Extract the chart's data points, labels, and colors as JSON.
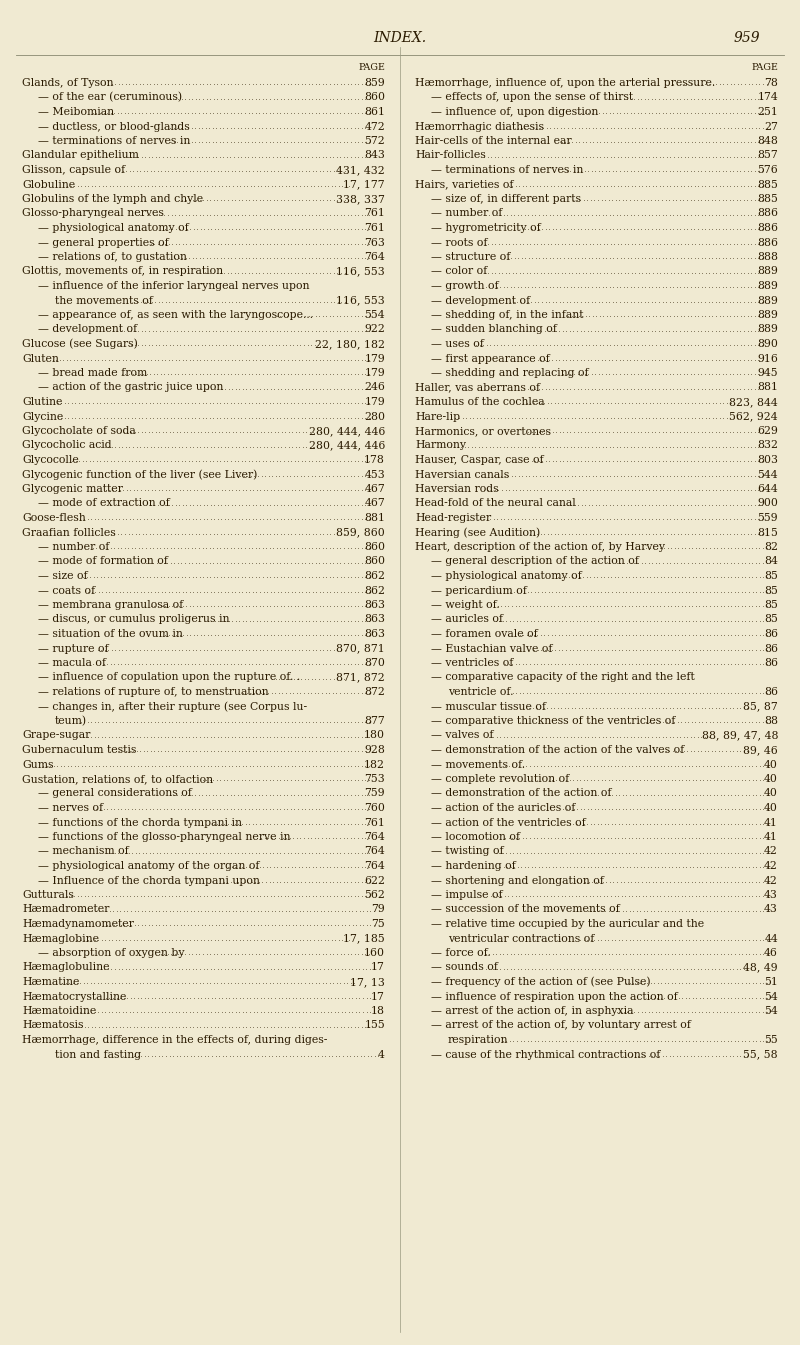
{
  "bg_color": "#f0ead2",
  "title": "INDEX.",
  "page_num": "959",
  "left_col": [
    {
      "text": "Glands, of Tyson",
      "indent": 0,
      "page": "859"
    },
    {
      "text": "— of the ear (ceruminous)",
      "indent": 1,
      "page": "860"
    },
    {
      "text": "— Meibomian",
      "indent": 1,
      "page": "861"
    },
    {
      "text": "— ductless, or blood-glands",
      "indent": 1,
      "page": "472"
    },
    {
      "text": "— terminations of nerves in",
      "indent": 1,
      "page": "572"
    },
    {
      "text": "Glandular epithelium",
      "indent": 0,
      "page": "843"
    },
    {
      "text": "Glisson, capsule of",
      "indent": 0,
      "page": "431, 432"
    },
    {
      "text": "Globuline",
      "indent": 0,
      "page": "17, 177"
    },
    {
      "text": "Globulins of the lymph and chyle",
      "indent": 0,
      "page": "338, 337"
    },
    {
      "text": "Glosso-pharyngeal nerves",
      "indent": 0,
      "page": "761"
    },
    {
      "text": "— physiological anatomy of",
      "indent": 1,
      "page": "761"
    },
    {
      "text": "— general properties of",
      "indent": 1,
      "page": "763"
    },
    {
      "text": "— relations of, to gustation",
      "indent": 1,
      "page": "764"
    },
    {
      "text": "Glottis, movements of, in respiration",
      "indent": 0,
      "page": "116, 553"
    },
    {
      "text": "— influence of the inferior laryngeal nerves upon",
      "indent": 1,
      "page": ""
    },
    {
      "text": "the movements of",
      "indent": 2,
      "page": "116, 553"
    },
    {
      "text": "— appearance of, as seen with the laryngoscope...",
      "indent": 1,
      "page": "554"
    },
    {
      "text": "— development of",
      "indent": 1,
      "page": "922"
    },
    {
      "text": "Glucose (see Sugars)",
      "indent": 0,
      "page": "22, 180, 182"
    },
    {
      "text": "Gluten",
      "indent": 0,
      "page": "179"
    },
    {
      "text": "— bread made from",
      "indent": 1,
      "page": "179"
    },
    {
      "text": "— action of the gastric juice upon",
      "indent": 1,
      "page": "246"
    },
    {
      "text": "Glutine",
      "indent": 0,
      "page": "179"
    },
    {
      "text": "Glycine",
      "indent": 0,
      "page": "280"
    },
    {
      "text": "Glycocholate of soda",
      "indent": 0,
      "page": "280, 444, 446"
    },
    {
      "text": "Glycocholic acid",
      "indent": 0,
      "page": "280, 444, 446"
    },
    {
      "text": "Glycocolle",
      "indent": 0,
      "page": "178"
    },
    {
      "text": "Glycogenic function of the liver (see Liver)",
      "indent": 0,
      "page": "453"
    },
    {
      "text": "Glycogenic matter",
      "indent": 0,
      "page": "467"
    },
    {
      "text": "— mode of extraction of",
      "indent": 1,
      "page": "467"
    },
    {
      "text": "Goose-flesh",
      "indent": 0,
      "page": "881"
    },
    {
      "text": "Graafian follicles",
      "indent": 0,
      "page": "859, 860"
    },
    {
      "text": "— number of",
      "indent": 1,
      "page": "860"
    },
    {
      "text": "— mode of formation of",
      "indent": 1,
      "page": "860"
    },
    {
      "text": "— size of",
      "indent": 1,
      "page": "862"
    },
    {
      "text": "— coats of",
      "indent": 1,
      "page": "862"
    },
    {
      "text": "— membrana granulosa of",
      "indent": 1,
      "page": "863"
    },
    {
      "text": "— discus, or cumulus proligerus in",
      "indent": 1,
      "page": "863"
    },
    {
      "text": "— situation of the ovum in",
      "indent": 1,
      "page": "863"
    },
    {
      "text": "— rupture of",
      "indent": 1,
      "page": "870, 871"
    },
    {
      "text": "— macula of",
      "indent": 1,
      "page": "870"
    },
    {
      "text": "— influence of copulation upon the rupture of. .",
      "indent": 1,
      "page": "871, 872"
    },
    {
      "text": "— relations of rupture of, to menstruation",
      "indent": 1,
      "page": "872"
    },
    {
      "text": "— changes in, after their rupture (see Corpus lu-",
      "indent": 1,
      "page": ""
    },
    {
      "text": "teum)",
      "indent": 2,
      "page": "877"
    },
    {
      "text": "Grape-sugar",
      "indent": 0,
      "page": "180"
    },
    {
      "text": "Gubernaculum testis",
      "indent": 0,
      "page": "928"
    },
    {
      "text": "Gums",
      "indent": 0,
      "page": "182"
    },
    {
      "text": "Gustation, relations of, to olfaction",
      "indent": 0,
      "page": "753"
    },
    {
      "text": "— general considerations of",
      "indent": 1,
      "page": "759"
    },
    {
      "text": "— nerves of",
      "indent": 1,
      "page": "760"
    },
    {
      "text": "— functions of the chorda tympani in",
      "indent": 1,
      "page": "761"
    },
    {
      "text": "— functions of the glosso-pharyngeal nerve in",
      "indent": 1,
      "page": "764"
    },
    {
      "text": "— mechanism of",
      "indent": 1,
      "page": "764"
    },
    {
      "text": "— physiological anatomy of the organ of",
      "indent": 1,
      "page": "764"
    },
    {
      "text": "— Influence of the chorda tympani upon",
      "indent": 1,
      "page": "622"
    },
    {
      "text": "Gutturals",
      "indent": 0,
      "page": "562"
    },
    {
      "text": "Hæmadrometer",
      "indent": 0,
      "page": "79"
    },
    {
      "text": "Hæmadynamometer",
      "indent": 0,
      "page": "75"
    },
    {
      "text": "Hæmaglobine",
      "indent": 0,
      "page": "17, 185"
    },
    {
      "text": "— absorption of oxygen by",
      "indent": 1,
      "page": "160"
    },
    {
      "text": "Hæmaglobuline",
      "indent": 0,
      "page": "17"
    },
    {
      "text": "Hæmatine",
      "indent": 0,
      "page": "17, 13"
    },
    {
      "text": "Hæmatocrystalline",
      "indent": 0,
      "page": "17"
    },
    {
      "text": "Hæmatoidine",
      "indent": 0,
      "page": "18"
    },
    {
      "text": "Hæmatosis",
      "indent": 0,
      "page": "155"
    },
    {
      "text": "Hæmorrhage, difference in the effects of, during diges-",
      "indent": 0,
      "page": ""
    },
    {
      "text": "tion and fasting",
      "indent": 2,
      "page": "4"
    }
  ],
  "right_col": [
    {
      "text": "Hæmorrhage, influence of, upon the arterial pressure.",
      "indent": 0,
      "page": "78"
    },
    {
      "text": "— effects of, upon the sense of thirst",
      "indent": 1,
      "page": "174"
    },
    {
      "text": "— influence of, upon digestion",
      "indent": 1,
      "page": "251"
    },
    {
      "text": "Hæmorrhagic diathesis",
      "indent": 0,
      "page": "27"
    },
    {
      "text": "Hair-cells of the internal ear",
      "indent": 0,
      "page": "848"
    },
    {
      "text": "Hair-follicles",
      "indent": 0,
      "page": "857"
    },
    {
      "text": "— terminations of nerves in",
      "indent": 1,
      "page": "576"
    },
    {
      "text": "Hairs, varieties of",
      "indent": 0,
      "page": "885"
    },
    {
      "text": "— size of, in different parts",
      "indent": 1,
      "page": "885"
    },
    {
      "text": "— number of",
      "indent": 1,
      "page": "886"
    },
    {
      "text": "— hygrometricity of",
      "indent": 1,
      "page": "886"
    },
    {
      "text": "— roots of",
      "indent": 1,
      "page": "886"
    },
    {
      "text": "— structure of",
      "indent": 1,
      "page": "888"
    },
    {
      "text": "— color of",
      "indent": 1,
      "page": "889"
    },
    {
      "text": "— growth of",
      "indent": 1,
      "page": "889"
    },
    {
      "text": "— development of",
      "indent": 1,
      "page": "889"
    },
    {
      "text": "— shedding of, in the infant",
      "indent": 1,
      "page": "889"
    },
    {
      "text": "— sudden blanching of",
      "indent": 1,
      "page": "889"
    },
    {
      "text": "— uses of",
      "indent": 1,
      "page": "890"
    },
    {
      "text": "— first appearance of",
      "indent": 1,
      "page": "916"
    },
    {
      "text": "— shedding and replacing of",
      "indent": 1,
      "page": "945"
    },
    {
      "text": "Haller, vas aberrans of",
      "indent": 0,
      "page": "881"
    },
    {
      "text": "Hamulus of the cochlea",
      "indent": 0,
      "page": "823, 844"
    },
    {
      "text": "Hare-lip",
      "indent": 0,
      "page": "562, 924"
    },
    {
      "text": "Harmonics, or overtones",
      "indent": 0,
      "page": "629"
    },
    {
      "text": "Harmony",
      "indent": 0,
      "page": "832"
    },
    {
      "text": "Hauser, Caspar, case of",
      "indent": 0,
      "page": "803"
    },
    {
      "text": "Haversian canals",
      "indent": 0,
      "page": "544"
    },
    {
      "text": "Haversian rods",
      "indent": 0,
      "page": "644"
    },
    {
      "text": "Head-fold of the neural canal",
      "indent": 0,
      "page": "900"
    },
    {
      "text": "Head-register",
      "indent": 0,
      "page": "559"
    },
    {
      "text": "Hearing (see Audition)",
      "indent": 0,
      "page": "815"
    },
    {
      "text": "Heart, description of the action of, by Harvey",
      "indent": 0,
      "page": "82"
    },
    {
      "text": "— general description of the action of",
      "indent": 1,
      "page": "84"
    },
    {
      "text": "— physiological anatomy of",
      "indent": 1,
      "page": "85"
    },
    {
      "text": "— pericardium of",
      "indent": 1,
      "page": "85"
    },
    {
      "text": "— weight of.",
      "indent": 1,
      "page": "85"
    },
    {
      "text": "— auricles of",
      "indent": 1,
      "page": "85"
    },
    {
      "text": "— foramen ovale of",
      "indent": 1,
      "page": "86"
    },
    {
      "text": "— Eustachian valve of",
      "indent": 1,
      "page": "86"
    },
    {
      "text": "— ventricles of",
      "indent": 1,
      "page": "86"
    },
    {
      "text": "— comparative capacity of the right and the left",
      "indent": 1,
      "page": ""
    },
    {
      "text": "ventricle of.",
      "indent": 2,
      "page": "86"
    },
    {
      "text": "— muscular tissue of",
      "indent": 1,
      "page": "85, 87"
    },
    {
      "text": "— comparative thickness of the ventricles of",
      "indent": 1,
      "page": "88"
    },
    {
      "text": "— valves of",
      "indent": 1,
      "page": "88, 89, 47, 48"
    },
    {
      "text": "— demonstration of the action of the valves of",
      "indent": 1,
      "page": "89, 46"
    },
    {
      "text": "— movements of.",
      "indent": 1,
      "page": "40"
    },
    {
      "text": "— complete revolution of",
      "indent": 1,
      "page": "40"
    },
    {
      "text": "— demonstration of the action of",
      "indent": 1,
      "page": "40"
    },
    {
      "text": "— action of the auricles of",
      "indent": 1,
      "page": "40"
    },
    {
      "text": "— action of the ventricles of",
      "indent": 1,
      "page": "41"
    },
    {
      "text": "— locomotion of",
      "indent": 1,
      "page": "41"
    },
    {
      "text": "— twisting of",
      "indent": 1,
      "page": "42"
    },
    {
      "text": "— hardening of",
      "indent": 1,
      "page": "42"
    },
    {
      "text": "— shortening and elongation of",
      "indent": 1,
      "page": "42"
    },
    {
      "text": "— impulse of",
      "indent": 1,
      "page": "43"
    },
    {
      "text": "— succession of the movements of",
      "indent": 1,
      "page": "43"
    },
    {
      "text": "— relative time occupied by the auricular and the",
      "indent": 1,
      "page": ""
    },
    {
      "text": "ventricular contractions of",
      "indent": 2,
      "page": "44"
    },
    {
      "text": "— force of.",
      "indent": 1,
      "page": "46"
    },
    {
      "text": "— sounds of",
      "indent": 1,
      "page": "48, 49"
    },
    {
      "text": "— frequency of the action of (see Pulse)",
      "indent": 1,
      "page": "51"
    },
    {
      "text": "— influence of respiration upon the action of",
      "indent": 1,
      "page": "54"
    },
    {
      "text": "— arrest of the action of, in asphyxia",
      "indent": 1,
      "page": "54"
    },
    {
      "text": "— arrest of the action of, by voluntary arrest of",
      "indent": 1,
      "page": ""
    },
    {
      "text": "respiration",
      "indent": 2,
      "page": "55"
    },
    {
      "text": "— cause of the rhythmical contractions of",
      "indent": 1,
      "page": "55, 58"
    }
  ],
  "font_size": 7.8,
  "title_font_size": 10.0,
  "text_color": "#2a1a00",
  "dot_color": "#2a1a00"
}
